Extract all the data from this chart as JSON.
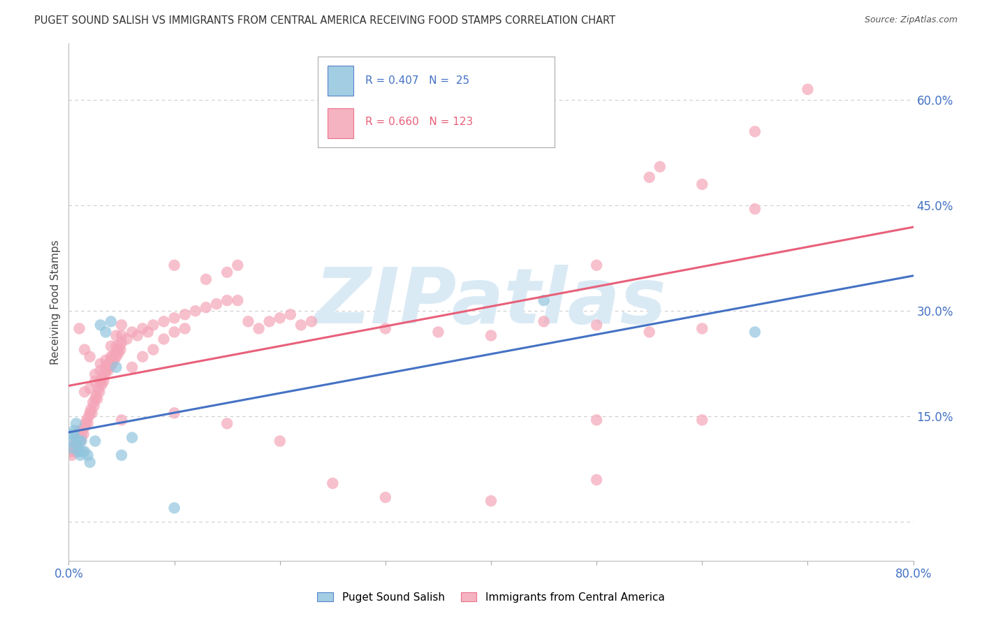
{
  "title": "PUGET SOUND SALISH VS IMMIGRANTS FROM CENTRAL AMERICA RECEIVING FOOD STAMPS CORRELATION CHART",
  "source": "Source: ZipAtlas.com",
  "ylabel": "Receiving Food Stamps",
  "yticks": [
    0.0,
    0.15,
    0.3,
    0.45,
    0.6
  ],
  "ytick_labels": [
    "",
    "15.0%",
    "30.0%",
    "45.0%",
    "60.0%"
  ],
  "xlim": [
    0.0,
    0.8
  ],
  "ylim": [
    -0.055,
    0.68
  ],
  "legend1_label": "Puget Sound Salish",
  "legend2_label": "Immigrants from Central America",
  "R1": 0.407,
  "N1": 25,
  "R2": 0.66,
  "N2": 123,
  "blue_color": "#92C5DE",
  "pink_color": "#F4A6B8",
  "blue_line_color": "#4472C4",
  "pink_line_color": "#E8607A",
  "blue_scatter": [
    [
      0.002,
      0.115
    ],
    [
      0.003,
      0.105
    ],
    [
      0.004,
      0.125
    ],
    [
      0.005,
      0.13
    ],
    [
      0.006,
      0.12
    ],
    [
      0.007,
      0.14
    ],
    [
      0.008,
      0.11
    ],
    [
      0.009,
      0.1
    ],
    [
      0.01,
      0.115
    ],
    [
      0.011,
      0.095
    ],
    [
      0.012,
      0.115
    ],
    [
      0.013,
      0.1
    ],
    [
      0.015,
      0.1
    ],
    [
      0.018,
      0.095
    ],
    [
      0.02,
      0.085
    ],
    [
      0.025,
      0.115
    ],
    [
      0.03,
      0.28
    ],
    [
      0.035,
      0.27
    ],
    [
      0.04,
      0.285
    ],
    [
      0.045,
      0.22
    ],
    [
      0.05,
      0.095
    ],
    [
      0.06,
      0.12
    ],
    [
      0.1,
      0.02
    ],
    [
      0.45,
      0.315
    ],
    [
      0.65,
      0.27
    ]
  ],
  "pink_scatter": [
    [
      0.002,
      0.1
    ],
    [
      0.003,
      0.095
    ],
    [
      0.004,
      0.105
    ],
    [
      0.005,
      0.11
    ],
    [
      0.006,
      0.1
    ],
    [
      0.007,
      0.115
    ],
    [
      0.008,
      0.105
    ],
    [
      0.009,
      0.12
    ],
    [
      0.01,
      0.13
    ],
    [
      0.011,
      0.115
    ],
    [
      0.012,
      0.12
    ],
    [
      0.013,
      0.13
    ],
    [
      0.014,
      0.125
    ],
    [
      0.015,
      0.135
    ],
    [
      0.016,
      0.14
    ],
    [
      0.017,
      0.145
    ],
    [
      0.018,
      0.14
    ],
    [
      0.019,
      0.15
    ],
    [
      0.02,
      0.155
    ],
    [
      0.021,
      0.16
    ],
    [
      0.022,
      0.155
    ],
    [
      0.023,
      0.17
    ],
    [
      0.024,
      0.165
    ],
    [
      0.025,
      0.175
    ],
    [
      0.026,
      0.18
    ],
    [
      0.027,
      0.175
    ],
    [
      0.028,
      0.19
    ],
    [
      0.029,
      0.185
    ],
    [
      0.03,
      0.2
    ],
    [
      0.031,
      0.195
    ],
    [
      0.032,
      0.205
    ],
    [
      0.033,
      0.2
    ],
    [
      0.034,
      0.21
    ],
    [
      0.035,
      0.215
    ],
    [
      0.036,
      0.22
    ],
    [
      0.037,
      0.215
    ],
    [
      0.038,
      0.225
    ],
    [
      0.039,
      0.22
    ],
    [
      0.04,
      0.23
    ],
    [
      0.041,
      0.225
    ],
    [
      0.042,
      0.235
    ],
    [
      0.043,
      0.23
    ],
    [
      0.044,
      0.24
    ],
    [
      0.045,
      0.235
    ],
    [
      0.046,
      0.245
    ],
    [
      0.047,
      0.24
    ],
    [
      0.048,
      0.25
    ],
    [
      0.049,
      0.245
    ],
    [
      0.05,
      0.255
    ],
    [
      0.055,
      0.26
    ],
    [
      0.06,
      0.27
    ],
    [
      0.065,
      0.265
    ],
    [
      0.07,
      0.275
    ],
    [
      0.075,
      0.27
    ],
    [
      0.08,
      0.28
    ],
    [
      0.09,
      0.285
    ],
    [
      0.1,
      0.29
    ],
    [
      0.11,
      0.295
    ],
    [
      0.12,
      0.3
    ],
    [
      0.13,
      0.305
    ],
    [
      0.14,
      0.31
    ],
    [
      0.15,
      0.315
    ],
    [
      0.16,
      0.315
    ],
    [
      0.17,
      0.285
    ],
    [
      0.18,
      0.275
    ],
    [
      0.19,
      0.285
    ],
    [
      0.2,
      0.29
    ],
    [
      0.21,
      0.295
    ],
    [
      0.22,
      0.28
    ],
    [
      0.23,
      0.285
    ],
    [
      0.01,
      0.275
    ],
    [
      0.015,
      0.245
    ],
    [
      0.02,
      0.235
    ],
    [
      0.025,
      0.21
    ],
    [
      0.03,
      0.225
    ],
    [
      0.035,
      0.23
    ],
    [
      0.04,
      0.25
    ],
    [
      0.045,
      0.265
    ],
    [
      0.05,
      0.28
    ],
    [
      0.015,
      0.185
    ],
    [
      0.02,
      0.19
    ],
    [
      0.025,
      0.2
    ],
    [
      0.03,
      0.215
    ],
    [
      0.035,
      0.22
    ],
    [
      0.04,
      0.235
    ],
    [
      0.045,
      0.25
    ],
    [
      0.05,
      0.265
    ],
    [
      0.06,
      0.22
    ],
    [
      0.07,
      0.235
    ],
    [
      0.08,
      0.245
    ],
    [
      0.09,
      0.26
    ],
    [
      0.1,
      0.27
    ],
    [
      0.11,
      0.275
    ],
    [
      0.05,
      0.145
    ],
    [
      0.1,
      0.155
    ],
    [
      0.15,
      0.14
    ],
    [
      0.2,
      0.115
    ],
    [
      0.25,
      0.055
    ],
    [
      0.3,
      0.035
    ],
    [
      0.4,
      0.03
    ],
    [
      0.5,
      0.06
    ],
    [
      0.1,
      0.365
    ],
    [
      0.13,
      0.345
    ],
    [
      0.15,
      0.355
    ],
    [
      0.16,
      0.365
    ],
    [
      0.3,
      0.275
    ],
    [
      0.35,
      0.27
    ],
    [
      0.4,
      0.265
    ],
    [
      0.45,
      0.285
    ],
    [
      0.5,
      0.28
    ],
    [
      0.55,
      0.27
    ],
    [
      0.6,
      0.275
    ],
    [
      0.5,
      0.365
    ],
    [
      0.6,
      0.48
    ],
    [
      0.65,
      0.555
    ],
    [
      0.55,
      0.49
    ],
    [
      0.56,
      0.505
    ],
    [
      0.7,
      0.615
    ],
    [
      0.65,
      0.445
    ],
    [
      0.5,
      0.145
    ],
    [
      0.6,
      0.145
    ]
  ],
  "watermark": "ZIPatlas",
  "watermark_color": "#DAEAF5",
  "background_color": "#FFFFFF",
  "grid_color": "#CCCCCC",
  "axis_label_color": "#4472C4",
  "title_color": "#333333"
}
